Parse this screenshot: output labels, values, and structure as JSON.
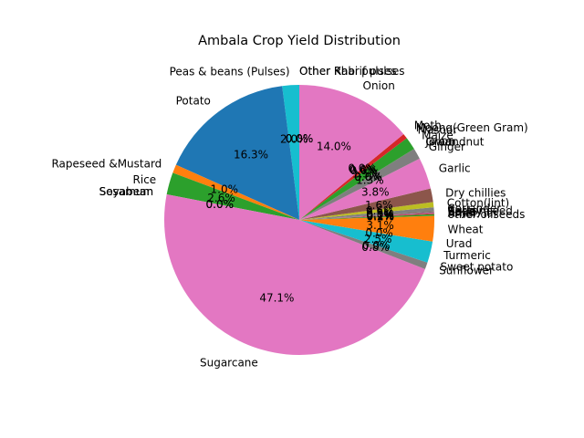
{
  "chart_data": {
    "type": "pie",
    "title": "Ambala Crop Yield Distribution",
    "start_angle": 90,
    "direction": "counterclockwise",
    "autopct_format": "%1.1f%%",
    "slices": [
      {
        "label": "Other Rabi pulses",
        "value": 0.0,
        "color": "#17becf"
      },
      {
        "label": "Other Kharif pulses",
        "value": 0.0,
        "color": "#1f77b4"
      },
      {
        "label": "Peas & beans (Pulses)",
        "value": 2.0,
        "color": "#17becf"
      },
      {
        "label": "Potato",
        "value": 16.0,
        "color": "#1f77b4"
      },
      {
        "label": "Rapeseed &Mustard",
        "value": 1.0,
        "color": "#ff7f0e"
      },
      {
        "label": "Rice",
        "value": 2.6,
        "color": "#2ca02c"
      },
      {
        "label": "Sesamum",
        "value": 0.0,
        "color": "#d62728"
      },
      {
        "label": "Soyabean",
        "value": 0.0,
        "color": "#9467bd"
      },
      {
        "label": "Sugarcane",
        "value": 46.3,
        "color": "#e377c2"
      },
      {
        "label": "Sunflower",
        "value": 0.8,
        "color": "#7f7f7f"
      },
      {
        "label": "Sweet potato",
        "value": 0.0,
        "color": "#bcbd22"
      },
      {
        "label": "Turmeric",
        "value": 2.5,
        "color": "#17becf"
      },
      {
        "label": "Urad",
        "value": 0.0,
        "color": "#1f77b4"
      },
      {
        "label": "Wheat",
        "value": 3.0,
        "color": "#ff7f0e"
      },
      {
        "label": "other oilseeds",
        "value": 0.2,
        "color": "#2ca02c"
      },
      {
        "label": "Arhar/Tur",
        "value": 0.1,
        "color": "#d62728"
      },
      {
        "label": "Bajra",
        "value": 0.1,
        "color": "#9467bd"
      },
      {
        "label": "Barley",
        "value": 0.1,
        "color": "#8c564b"
      },
      {
        "label": "Castor seed",
        "value": 0.0,
        "color": "#e377c2"
      },
      {
        "label": "Coriander",
        "value": 0.5,
        "color": "#7f7f7f"
      },
      {
        "label": "Cotton(lint)",
        "value": 0.6,
        "color": "#bcbd22"
      },
      {
        "label": "Dry chillies",
        "value": 1.6,
        "color": "#8c564b"
      },
      {
        "label": "Garlic",
        "value": 3.7,
        "color": "#e377c2"
      },
      {
        "label": "Ginger",
        "value": 1.3,
        "color": "#7f7f7f"
      },
      {
        "label": "Gram",
        "value": 0.0,
        "color": "#bcbd22"
      },
      {
        "label": "Groundnut",
        "value": 0.0,
        "color": "#17becf"
      },
      {
        "label": "Jowar",
        "value": 0.0,
        "color": "#1f77b4"
      },
      {
        "label": "Maize",
        "value": 1.5,
        "color": "#2ca02c"
      },
      {
        "label": "Masoor",
        "value": 0.0,
        "color": "#ff7f0e"
      },
      {
        "label": "Moong(Green Gram)",
        "value": 0.6,
        "color": "#d62728"
      },
      {
        "label": "Moth",
        "value": 0.0,
        "color": "#9467bd"
      },
      {
        "label": "Onion",
        "value": 13.8,
        "color": "#e377c2"
      }
    ]
  }
}
